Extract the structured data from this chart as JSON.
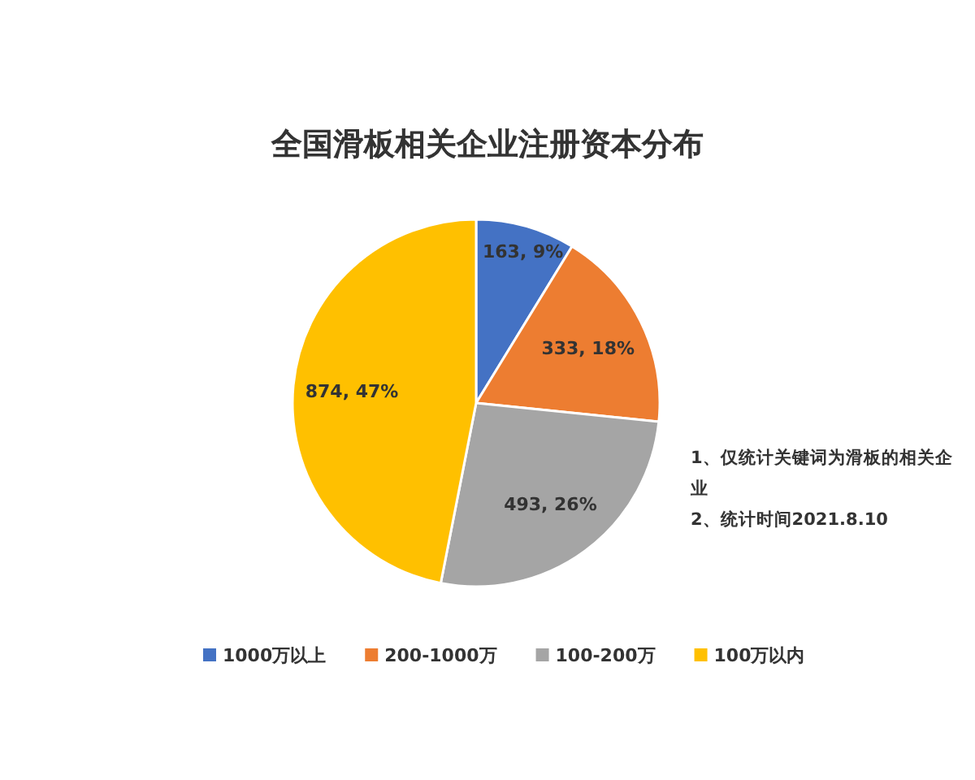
{
  "chart_data": {
    "type": "pie",
    "title": "全国滑板相关企业注册资本分布",
    "categories": [
      "1000万以上",
      "200-1000万",
      "100-200万",
      "100万以内"
    ],
    "values": [
      163,
      333,
      493,
      874
    ],
    "value_labels": [
      "163, 9%",
      "333, 18%",
      "493, 26%",
      "874, 47%"
    ],
    "colors": [
      "#4472c4",
      "#ed7d31",
      "#a5a5a5",
      "#ffc000"
    ],
    "annotations": [
      "1、仅统计关键词为滑板的相关企业",
      "2、统计时间2021.8.10"
    ],
    "legend": "bottom"
  }
}
